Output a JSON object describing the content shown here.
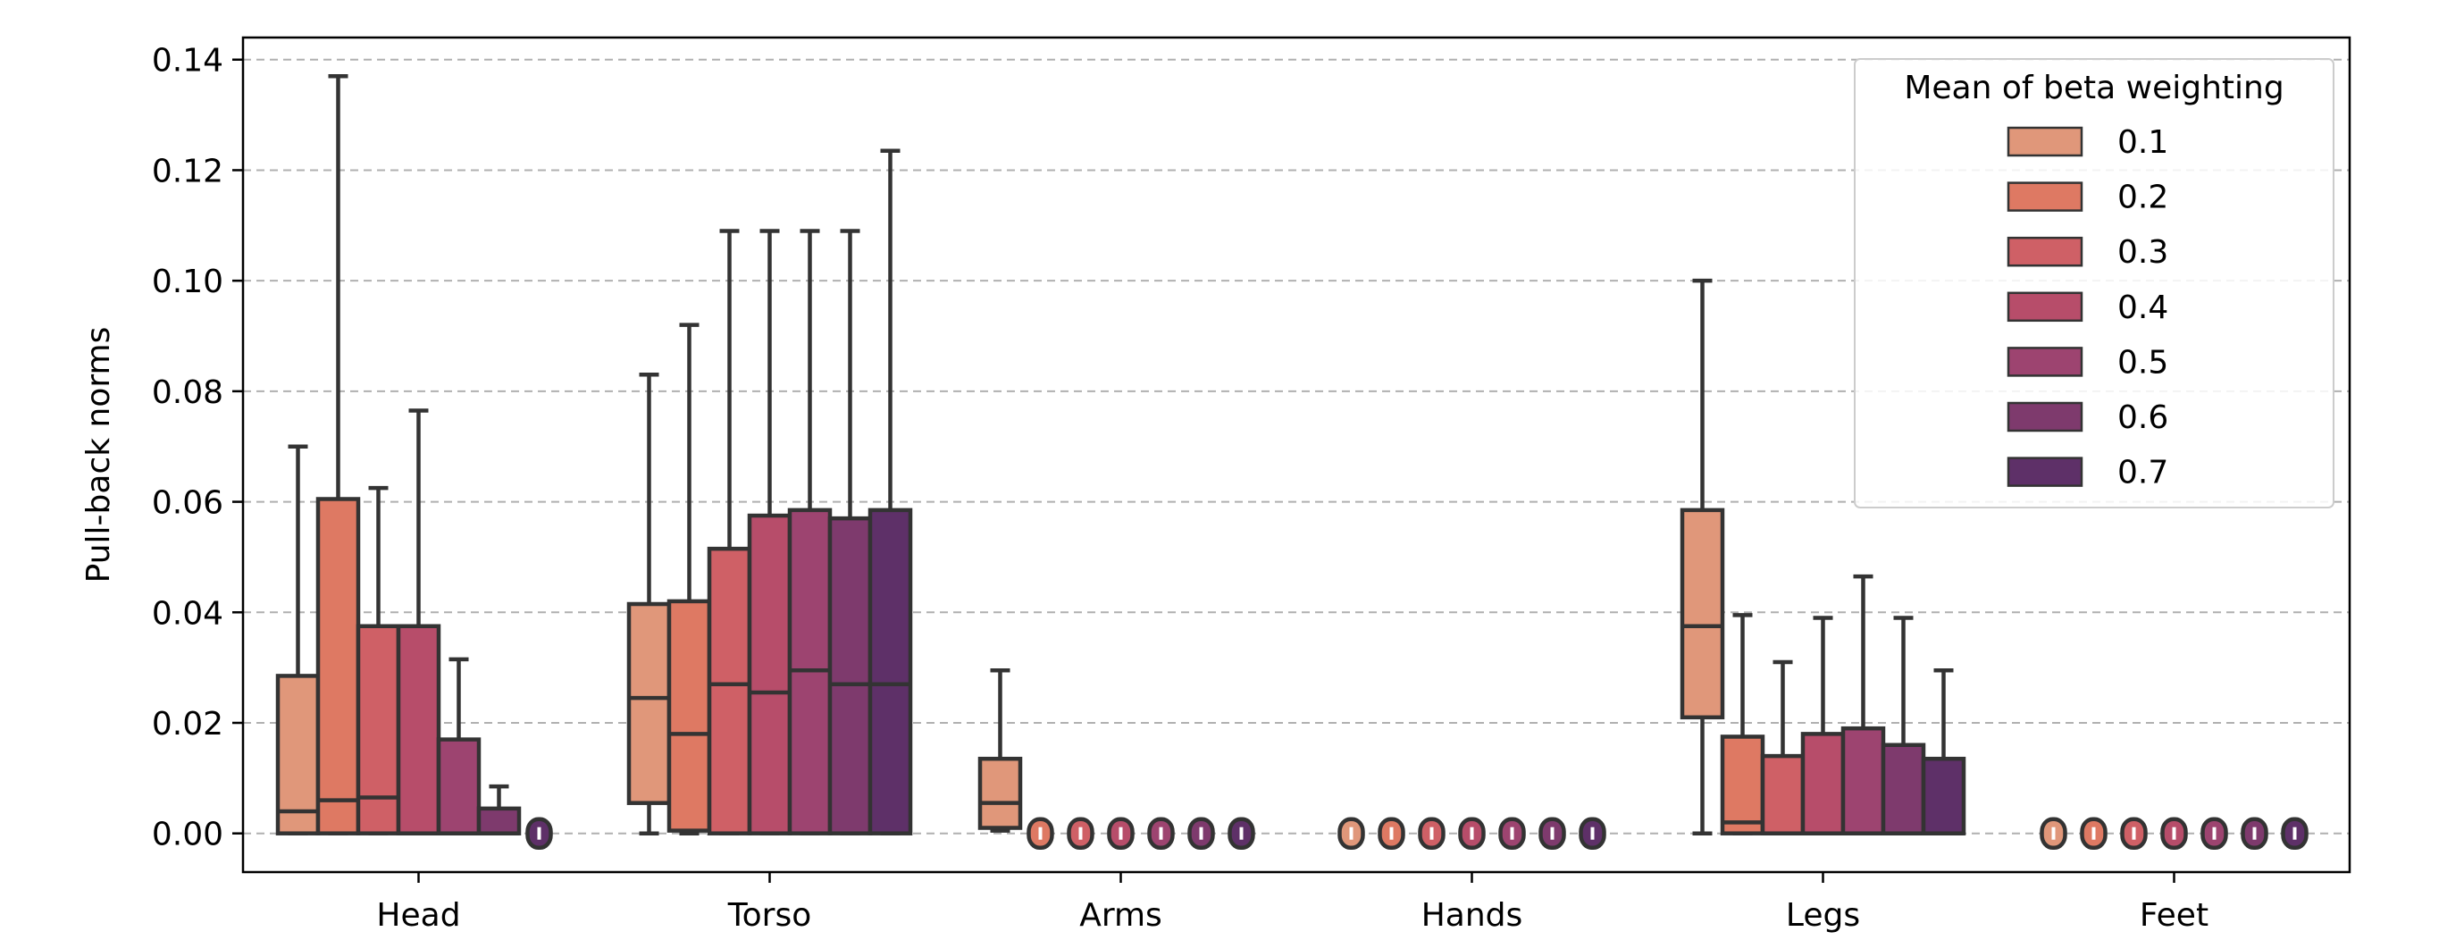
{
  "chart_data": {
    "type": "box",
    "title": "",
    "xlabel": "",
    "ylabel": "Pull-back norms",
    "ylim": [
      -0.007,
      0.144
    ],
    "yticks": [
      0.0,
      0.02,
      0.04,
      0.06,
      0.08,
      0.1,
      0.12,
      0.14
    ],
    "ytick_labels": [
      "0.00",
      "0.02",
      "0.04",
      "0.06",
      "0.08",
      "0.10",
      "0.12",
      "0.14"
    ],
    "grid": "y-dashed",
    "categories": [
      "Head",
      "Torso",
      "Arms",
      "Hands",
      "Legs",
      "Feet"
    ],
    "legend": {
      "title": "Mean of beta weighting",
      "placement": "top-right",
      "entries": [
        "0.1",
        "0.2",
        "0.3",
        "0.4",
        "0.5",
        "0.6",
        "0.7"
      ]
    },
    "series": [
      {
        "name": "0.1",
        "color": "#e0977a",
        "boxes": [
          {
            "min": 0.0,
            "q1": 0.0,
            "median": 0.004,
            "q3": 0.0285,
            "max": 0.07
          },
          {
            "min": 0.0,
            "q1": 0.0055,
            "median": 0.0245,
            "q3": 0.0415,
            "max": 0.083
          },
          {
            "min": 0.0005,
            "q1": 0.001,
            "median": 0.0055,
            "q3": 0.0135,
            "max": 0.0295
          },
          {
            "min": 0.0,
            "q1": 0.0,
            "median": 0.0,
            "q3": 0.0,
            "max": 0.0
          },
          {
            "min": 0.0,
            "q1": 0.021,
            "median": 0.0375,
            "q3": 0.0585,
            "max": 0.1
          },
          {
            "min": 0.0,
            "q1": 0.0,
            "median": 0.0,
            "q3": 0.0,
            "max": 0.0
          }
        ]
      },
      {
        "name": "0.2",
        "color": "#de7963",
        "boxes": [
          {
            "min": 0.0,
            "q1": 0.0,
            "median": 0.006,
            "q3": 0.0605,
            "max": 0.137
          },
          {
            "min": 0.0,
            "q1": 0.0005,
            "median": 0.018,
            "q3": 0.042,
            "max": 0.092
          },
          {
            "min": 0.0,
            "q1": 0.0,
            "median": 0.0,
            "q3": 0.0,
            "max": 0.0
          },
          {
            "min": 0.0,
            "q1": 0.0,
            "median": 0.0,
            "q3": 0.0,
            "max": 0.0
          },
          {
            "min": 0.0,
            "q1": 0.0,
            "median": 0.002,
            "q3": 0.0175,
            "max": 0.0395
          },
          {
            "min": 0.0,
            "q1": 0.0,
            "median": 0.0,
            "q3": 0.0,
            "max": 0.0
          }
        ]
      },
      {
        "name": "0.3",
        "color": "#cf6066",
        "boxes": [
          {
            "min": 0.0,
            "q1": 0.0,
            "median": 0.0065,
            "q3": 0.0375,
            "max": 0.0625
          },
          {
            "min": 0.0,
            "q1": 0.0,
            "median": 0.027,
            "q3": 0.0515,
            "max": 0.109
          },
          {
            "min": 0.0,
            "q1": 0.0,
            "median": 0.0,
            "q3": 0.0,
            "max": 0.0
          },
          {
            "min": 0.0,
            "q1": 0.0,
            "median": 0.0,
            "q3": 0.0,
            "max": 0.0
          },
          {
            "min": 0.0,
            "q1": 0.0,
            "median": 0.0,
            "q3": 0.014,
            "max": 0.031
          },
          {
            "min": 0.0,
            "q1": 0.0,
            "median": 0.0,
            "q3": 0.0,
            "max": 0.0
          }
        ]
      },
      {
        "name": "0.4",
        "color": "#b74d6a",
        "boxes": [
          {
            "min": 0.0,
            "q1": 0.0,
            "median": 0.0,
            "q3": 0.0375,
            "max": 0.0765
          },
          {
            "min": 0.0,
            "q1": 0.0,
            "median": 0.0255,
            "q3": 0.0575,
            "max": 0.109
          },
          {
            "min": 0.0,
            "q1": 0.0,
            "median": 0.0,
            "q3": 0.0,
            "max": 0.0
          },
          {
            "min": 0.0,
            "q1": 0.0,
            "median": 0.0,
            "q3": 0.0,
            "max": 0.0
          },
          {
            "min": 0.0,
            "q1": 0.0,
            "median": 0.0,
            "q3": 0.018,
            "max": 0.039
          },
          {
            "min": 0.0,
            "q1": 0.0,
            "median": 0.0,
            "q3": 0.0,
            "max": 0.0
          }
        ]
      },
      {
        "name": "0.5",
        "color": "#9d4470",
        "boxes": [
          {
            "min": 0.0,
            "q1": 0.0,
            "median": 0.0,
            "q3": 0.017,
            "max": 0.0315
          },
          {
            "min": 0.0,
            "q1": 0.0,
            "median": 0.0295,
            "q3": 0.0585,
            "max": 0.109
          },
          {
            "min": 0.0,
            "q1": 0.0,
            "median": 0.0,
            "q3": 0.0,
            "max": 0.0
          },
          {
            "min": 0.0,
            "q1": 0.0,
            "median": 0.0,
            "q3": 0.0,
            "max": 0.0
          },
          {
            "min": 0.0,
            "q1": 0.0,
            "median": 0.0,
            "q3": 0.019,
            "max": 0.0465
          },
          {
            "min": 0.0,
            "q1": 0.0,
            "median": 0.0,
            "q3": 0.0,
            "max": 0.0
          }
        ]
      },
      {
        "name": "0.6",
        "color": "#7e3a6d",
        "boxes": [
          {
            "min": 0.0,
            "q1": 0.0,
            "median": 0.0,
            "q3": 0.0045,
            "max": 0.0085
          },
          {
            "min": 0.0,
            "q1": 0.0,
            "median": 0.027,
            "q3": 0.057,
            "max": 0.109
          },
          {
            "min": 0.0,
            "q1": 0.0,
            "median": 0.0,
            "q3": 0.0,
            "max": 0.0
          },
          {
            "min": 0.0,
            "q1": 0.0,
            "median": 0.0,
            "q3": 0.0,
            "max": 0.0
          },
          {
            "min": 0.0,
            "q1": 0.0,
            "median": 0.0,
            "q3": 0.016,
            "max": 0.039
          },
          {
            "min": 0.0,
            "q1": 0.0,
            "median": 0.0,
            "q3": 0.0,
            "max": 0.0
          }
        ]
      },
      {
        "name": "0.7",
        "color": "#5e3068",
        "boxes": [
          {
            "min": 0.0,
            "q1": 0.0,
            "median": 0.0,
            "q3": 0.0,
            "max": 0.0
          },
          {
            "min": 0.0,
            "q1": 0.0,
            "median": 0.027,
            "q3": 0.0585,
            "max": 0.1235
          },
          {
            "min": 0.0,
            "q1": 0.0,
            "median": 0.0,
            "q3": 0.0,
            "max": 0.0
          },
          {
            "min": 0.0,
            "q1": 0.0,
            "median": 0.0,
            "q3": 0.0,
            "max": 0.0
          },
          {
            "min": 0.0,
            "q1": 0.0,
            "median": 0.0,
            "q3": 0.0135,
            "max": 0.0295
          },
          {
            "min": 0.0,
            "q1": 0.0,
            "median": 0.0,
            "q3": 0.0,
            "max": 0.0
          }
        ]
      }
    ]
  }
}
